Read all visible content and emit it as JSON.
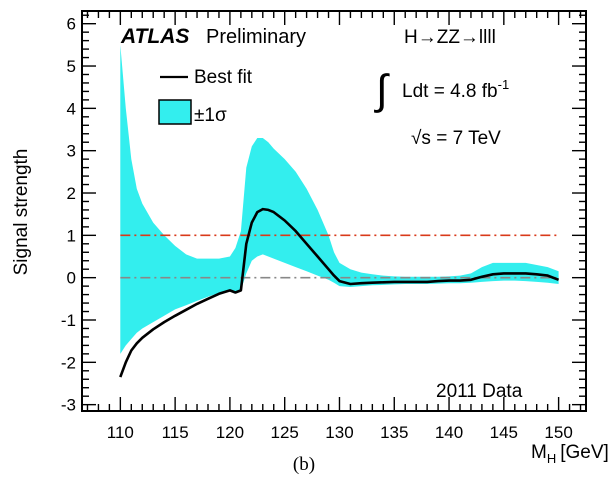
{
  "chart_data": {
    "type": "area",
    "title": "",
    "xlabel": "M",
    "xlabel_sub": "H",
    "xlabel_unit": "[GeV]",
    "ylabel": "Signal strength",
    "xlim": [
      106.5,
      152.5
    ],
    "ylim": [
      -3.15,
      6.3
    ],
    "x_ticks": [
      110,
      115,
      120,
      125,
      130,
      135,
      140,
      145,
      150
    ],
    "y_ticks": [
      -3,
      -2,
      -1,
      0,
      1,
      2,
      3,
      4,
      5,
      6
    ],
    "grid": false,
    "legend_position": "top-left",
    "colors": {
      "band": "#33eeee",
      "best_fit": "#000000",
      "mu_one": "#d93a1a",
      "mu_zero": "#888888"
    },
    "series": [
      {
        "name": "Best fit",
        "x": [
          110,
          110.5,
          111,
          111.5,
          112,
          113,
          114,
          115,
          116,
          117,
          118,
          119,
          120,
          120.5,
          121,
          121.5,
          122,
          122.5,
          123,
          123.5,
          124,
          125,
          126,
          127,
          128,
          129,
          129.5,
          130,
          131,
          132,
          133,
          134,
          135,
          136,
          137,
          138,
          139,
          140,
          141,
          142,
          143,
          144,
          145,
          146,
          147,
          148,
          149,
          150
        ],
        "y": [
          -2.35,
          -2.0,
          -1.72,
          -1.55,
          -1.42,
          -1.22,
          -1.05,
          -0.9,
          -0.76,
          -0.62,
          -0.5,
          -0.38,
          -0.3,
          -0.35,
          -0.3,
          0.8,
          1.3,
          1.55,
          1.62,
          1.6,
          1.55,
          1.35,
          1.1,
          0.8,
          0.5,
          0.2,
          0.05,
          -0.08,
          -0.15,
          -0.13,
          -0.12,
          -0.11,
          -0.1,
          -0.1,
          -0.1,
          -0.1,
          -0.08,
          -0.07,
          -0.07,
          -0.05,
          0.02,
          0.08,
          0.1,
          0.1,
          0.1,
          0.08,
          0.05,
          -0.05
        ]
      },
      {
        "name": "±1σ",
        "x": [
          110,
          110.5,
          111,
          111.5,
          112,
          113,
          114,
          115,
          116,
          117,
          118,
          119,
          120,
          120.5,
          121,
          121.5,
          122,
          122.5,
          123,
          123.5,
          124,
          125,
          126,
          127,
          128,
          129,
          129.5,
          130,
          131,
          132,
          133,
          134,
          135,
          136,
          137,
          138,
          139,
          140,
          141,
          142,
          143,
          144,
          145,
          146,
          147,
          148,
          149,
          150
        ],
        "upper": [
          5.5,
          4.0,
          2.8,
          2.1,
          1.75,
          1.3,
          1.0,
          0.75,
          0.55,
          0.45,
          0.45,
          0.45,
          0.5,
          0.7,
          1.1,
          2.6,
          3.1,
          3.3,
          3.3,
          3.2,
          3.05,
          2.8,
          2.5,
          2.1,
          1.6,
          1.0,
          0.6,
          0.35,
          0.2,
          0.12,
          0.08,
          0.05,
          0.03,
          0.02,
          0.02,
          0.02,
          0.02,
          0.03,
          0.05,
          0.1,
          0.25,
          0.35,
          0.35,
          0.35,
          0.35,
          0.3,
          0.25,
          0.15
        ],
        "lower": [
          -1.8,
          -1.6,
          -1.45,
          -1.3,
          -1.2,
          -1.05,
          -0.9,
          -0.75,
          -0.65,
          -0.55,
          -0.45,
          -0.36,
          -0.3,
          -0.33,
          -0.3,
          0.1,
          0.4,
          0.5,
          0.55,
          0.5,
          0.45,
          0.35,
          0.25,
          0.15,
          0.05,
          -0.05,
          -0.12,
          -0.2,
          -0.22,
          -0.2,
          -0.18,
          -0.17,
          -0.16,
          -0.15,
          -0.15,
          -0.15,
          -0.14,
          -0.13,
          -0.13,
          -0.12,
          -0.1,
          -0.08,
          -0.07,
          -0.07,
          -0.08,
          -0.1,
          -0.12,
          -0.15
        ]
      }
    ],
    "reference_lines": [
      {
        "y": 1,
        "style": "dash-dot",
        "color": "#d93a1a"
      },
      {
        "y": 0,
        "style": "dash-dot",
        "color": "#888888"
      }
    ],
    "annotations": {
      "experiment": "ATLAS",
      "status": "Preliminary",
      "channel": "H→ZZ→llll",
      "luminosity": "Ldt = 4.8 fb",
      "luminosity_exp": "-1",
      "integral_sign": "∫",
      "energy": "√s = 7 TeV",
      "dataset": "2011 Data",
      "panel": "(b)"
    }
  }
}
